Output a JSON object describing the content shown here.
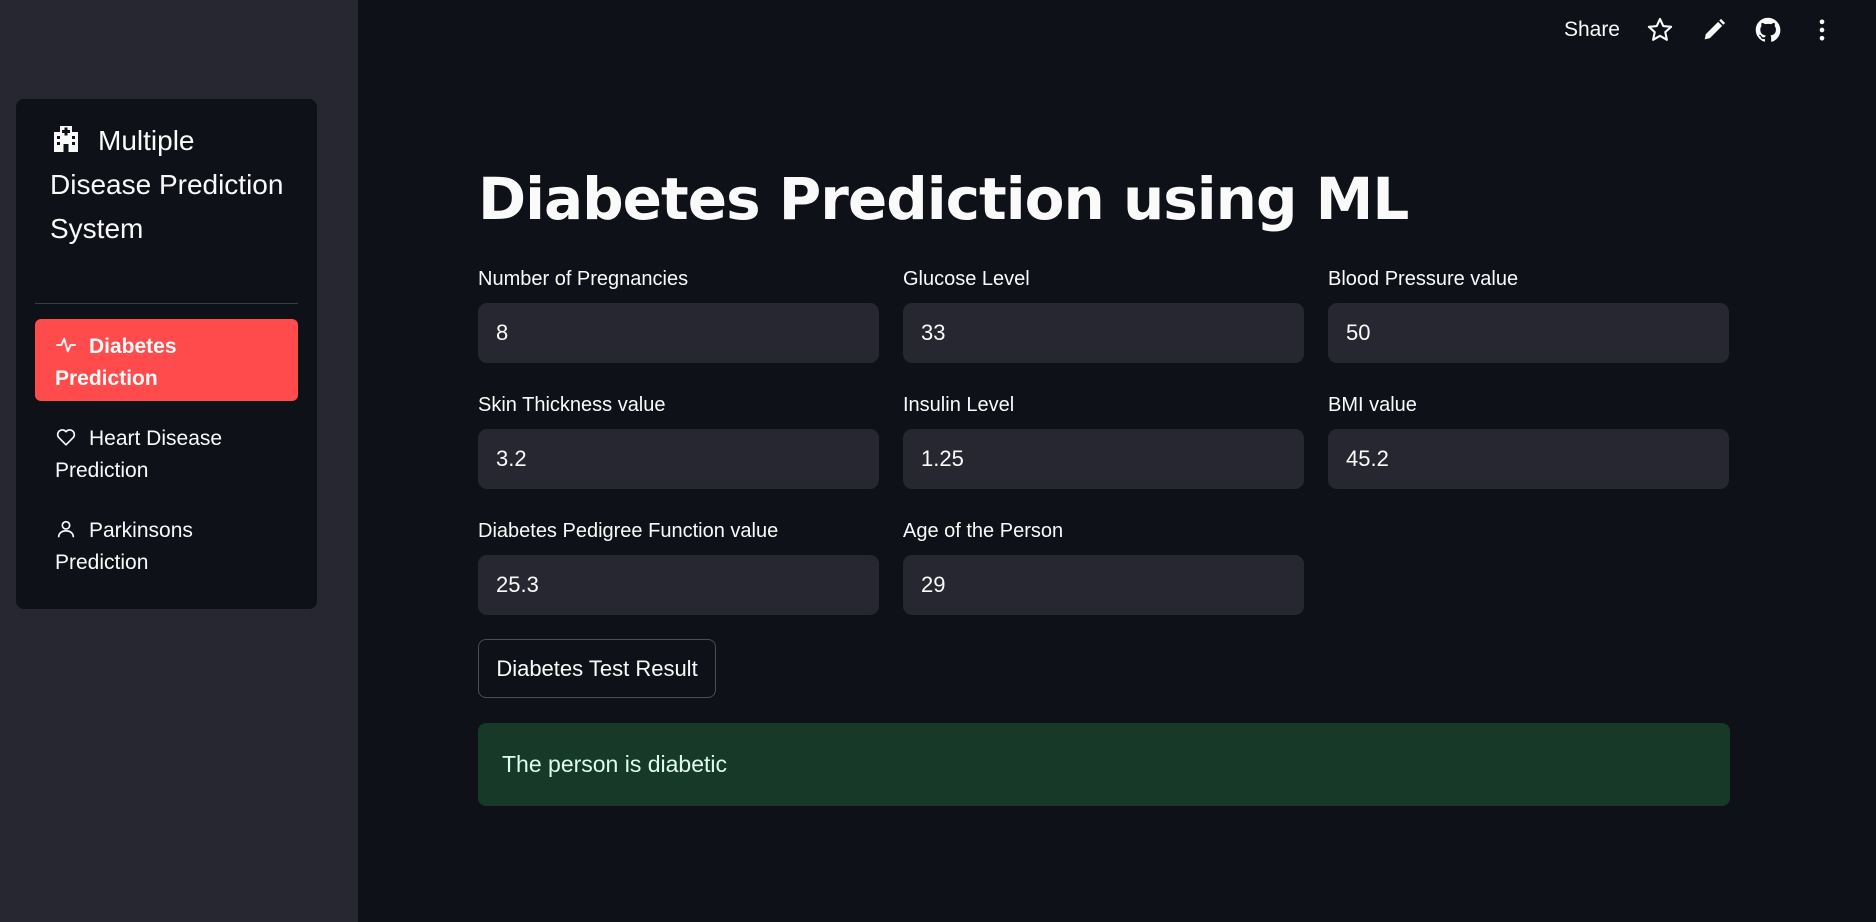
{
  "sidebar": {
    "title": "Multiple Disease Prediction System",
    "items": [
      {
        "label": "Diabetes Prediction",
        "icon": "activity-icon",
        "active": true
      },
      {
        "label": "Heart Disease Prediction",
        "icon": "heart-icon",
        "active": false
      },
      {
        "label": "Parkinsons Prediction",
        "icon": "person-icon",
        "active": false
      }
    ]
  },
  "topbar": {
    "share_label": "Share",
    "icons": [
      "star-icon",
      "pencil-icon",
      "github-icon",
      "more-vertical-icon"
    ]
  },
  "main": {
    "title": "Diabetes Prediction using ML",
    "fields": [
      {
        "label": "Number of Pregnancies",
        "value": "8"
      },
      {
        "label": "Glucose Level",
        "value": "33"
      },
      {
        "label": "Blood Pressure value",
        "value": "50"
      },
      {
        "label": "Skin Thickness value",
        "value": "3.2"
      },
      {
        "label": "Insulin Level",
        "value": "1.25"
      },
      {
        "label": "BMI value",
        "value": "45.2"
      },
      {
        "label": "Diabetes Pedigree Function value",
        "value": "25.3"
      },
      {
        "label": "Age of the Person",
        "value": "29"
      }
    ],
    "button_label": "Diabetes Test Result",
    "result_text": "The person is diabetic"
  },
  "colors": {
    "accent": "#ff4b4b",
    "success_bg": "#173928",
    "success_text": "#dffde9"
  }
}
